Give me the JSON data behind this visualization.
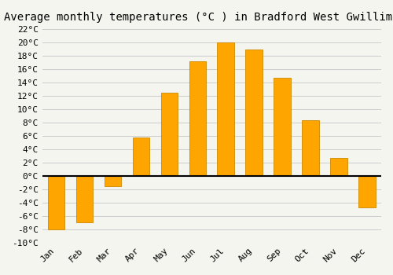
{
  "title": "Average monthly temperatures (°C ) in Bradford West Gwillimbury",
  "months": [
    "Jan",
    "Feb",
    "Mar",
    "Apr",
    "May",
    "Jun",
    "Jul",
    "Aug",
    "Sep",
    "Oct",
    "Nov",
    "Dec"
  ],
  "values": [
    -8,
    -7,
    -1.5,
    5.8,
    12.5,
    17.2,
    20.0,
    19.0,
    14.7,
    8.3,
    2.7,
    -4.7
  ],
  "bar_color": "#FFA500",
  "bar_edge_color": "#CC8800",
  "background_color": "#F5F5F0",
  "ylim": [
    -10,
    22
  ],
  "yticks": [
    -10,
    -8,
    -6,
    -4,
    -2,
    0,
    2,
    4,
    6,
    8,
    10,
    12,
    14,
    16,
    18,
    20,
    22
  ],
  "ytick_labels": [
    "-10°C",
    "-8°C",
    "-6°C",
    "-4°C",
    "-2°C",
    "0°C",
    "2°C",
    "4°C",
    "6°C",
    "8°C",
    "10°C",
    "12°C",
    "14°C",
    "16°C",
    "18°C",
    "20°C",
    "22°C"
  ],
  "title_fontsize": 10,
  "tick_fontsize": 8,
  "grid_color": "#CCCCCC",
  "zero_line_color": "#000000"
}
